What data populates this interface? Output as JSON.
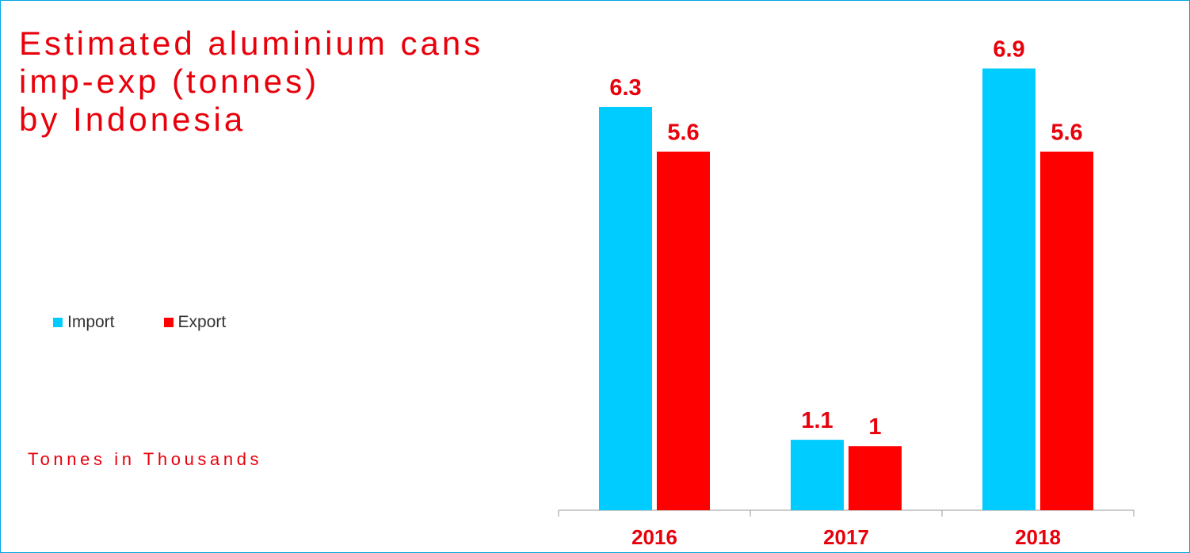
{
  "title_lines": [
    "Estimated aluminium cans",
    "imp-exp (tonnes)",
    "by Indonesia"
  ],
  "subtitle": "Tonnes in Thousands",
  "colors": {
    "import": "#00ccff",
    "export": "#ff0000",
    "text": "#e8000b",
    "axis": "#999999",
    "border": "#00a6e0"
  },
  "legend": [
    {
      "label": "Import",
      "color": "#00ccff"
    },
    {
      "label": "Export",
      "color": "#ff0000"
    }
  ],
  "chart_data": {
    "type": "bar",
    "title": "Estimated aluminium cans imp-exp (tonnes) by Indonesia",
    "categories": [
      "2016",
      "2017",
      "2018"
    ],
    "series": [
      {
        "name": "Import",
        "values": [
          6.3,
          1.1,
          6.9
        ]
      },
      {
        "name": "Export",
        "values": [
          5.6,
          1,
          5.6
        ]
      }
    ],
    "ylim": [
      0,
      7
    ],
    "grid": false,
    "legend_position": "left",
    "data_labels": true
  }
}
